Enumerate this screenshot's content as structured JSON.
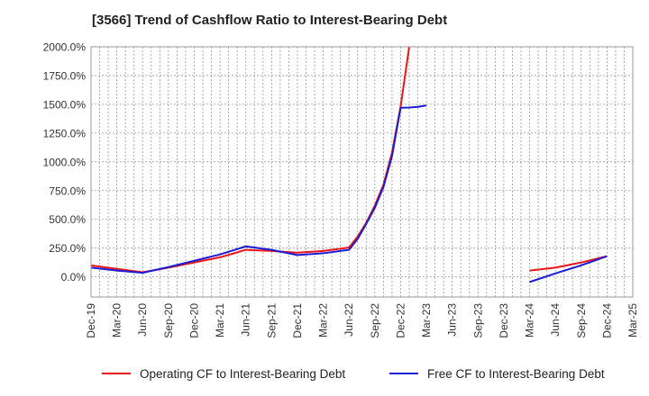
{
  "title": "[3566]  Trend of Cashflow Ratio to Interest-Bearing Debt",
  "chart_data": {
    "type": "line",
    "title": "[3566]  Trend of Cashflow Ratio to Interest-Bearing Debt",
    "xlabel": "",
    "ylabel": "",
    "ylim": [
      -175,
      2000
    ],
    "y_ticks": [
      "2000.0%",
      "1750.0%",
      "1500.0%",
      "1250.0%",
      "1000.0%",
      "750.0%",
      "500.0%",
      "250.0%",
      "0.0%"
    ],
    "y_tick_values": [
      2000,
      1750,
      1500,
      1250,
      1000,
      750,
      500,
      250,
      0
    ],
    "x_ticks": [
      "Dec-19",
      "Mar-20",
      "Jun-20",
      "Sep-20",
      "Dec-20",
      "Mar-21",
      "Jun-21",
      "Sep-21",
      "Dec-21",
      "Mar-22",
      "Jun-22",
      "Sep-22",
      "Dec-22",
      "Mar-23",
      "Jun-23",
      "Sep-23",
      "Dec-23",
      "Mar-24",
      "Jun-24",
      "Sep-24",
      "Dec-24",
      "Mar-25"
    ],
    "grid": true,
    "legend_position": "bottom",
    "series": [
      {
        "name": "Operating CF to Interest-Bearing Debt",
        "color": "#e8151b",
        "points": [
          {
            "x": "Dec-19",
            "y": 100
          },
          {
            "x": "Mar-20",
            "y": 70
          },
          {
            "x": "Jun-20",
            "y": 40
          },
          {
            "x": "Sep-20",
            "y": 80
          },
          {
            "x": "Dec-20",
            "y": 125
          },
          {
            "x": "Mar-21",
            "y": 170
          },
          {
            "x": "Jun-21",
            "y": 235
          },
          {
            "x": "Sep-21",
            "y": 225
          },
          {
            "x": "Dec-21",
            "y": 210
          },
          {
            "x": "Mar-22",
            "y": 225
          },
          {
            "x": "Jun-22",
            "y": 255
          },
          {
            "x": "Jul-22",
            "y": 350
          },
          {
            "x": "Aug-22",
            "y": 470
          },
          {
            "x": "Sep-22",
            "y": 620
          },
          {
            "x": "Oct-22",
            "y": 800
          },
          {
            "x": "Nov-22",
            "y": 1080
          },
          {
            "x": "Dec-22",
            "y": 1480
          },
          {
            "x": "Jan-23",
            "y": 2000
          },
          null,
          {
            "x": "Mar-24",
            "y": 55
          },
          {
            "x": "Jun-24",
            "y": 80
          },
          {
            "x": "Sep-24",
            "y": 125
          },
          {
            "x": "Dec-24",
            "y": 180
          }
        ]
      },
      {
        "name": "Free CF to Interest-Bearing Debt",
        "color": "#1b1bd6",
        "points": [
          {
            "x": "Dec-19",
            "y": 80
          },
          {
            "x": "Mar-20",
            "y": 55
          },
          {
            "x": "Jun-20",
            "y": 35
          },
          {
            "x": "Sep-20",
            "y": 85
          },
          {
            "x": "Dec-20",
            "y": 140
          },
          {
            "x": "Mar-21",
            "y": 195
          },
          {
            "x": "Jun-21",
            "y": 265
          },
          {
            "x": "Sep-21",
            "y": 235
          },
          {
            "x": "Dec-21",
            "y": 190
          },
          {
            "x": "Mar-22",
            "y": 205
          },
          {
            "x": "Jun-22",
            "y": 235
          },
          {
            "x": "Jul-22",
            "y": 330
          },
          {
            "x": "Aug-22",
            "y": 460
          },
          {
            "x": "Sep-22",
            "y": 600
          },
          {
            "x": "Oct-22",
            "y": 780
          },
          {
            "x": "Nov-22",
            "y": 1050
          },
          {
            "x": "Dec-22",
            "y": 1470
          },
          {
            "x": "Jan-23",
            "y": 1472
          },
          {
            "x": "Feb-23",
            "y": 1478
          },
          {
            "x": "Mar-23",
            "y": 1490
          },
          null,
          {
            "x": "Mar-24",
            "y": -45
          },
          {
            "x": "Jun-24",
            "y": 30
          },
          {
            "x": "Sep-24",
            "y": 100
          },
          {
            "x": "Dec-24",
            "y": 180
          }
        ]
      }
    ]
  },
  "legend": {
    "items": [
      {
        "label": "Operating CF to Interest-Bearing Debt",
        "color": "#e8151b"
      },
      {
        "label": "Free CF to Interest-Bearing Debt",
        "color": "#1b1bd6"
      }
    ]
  }
}
